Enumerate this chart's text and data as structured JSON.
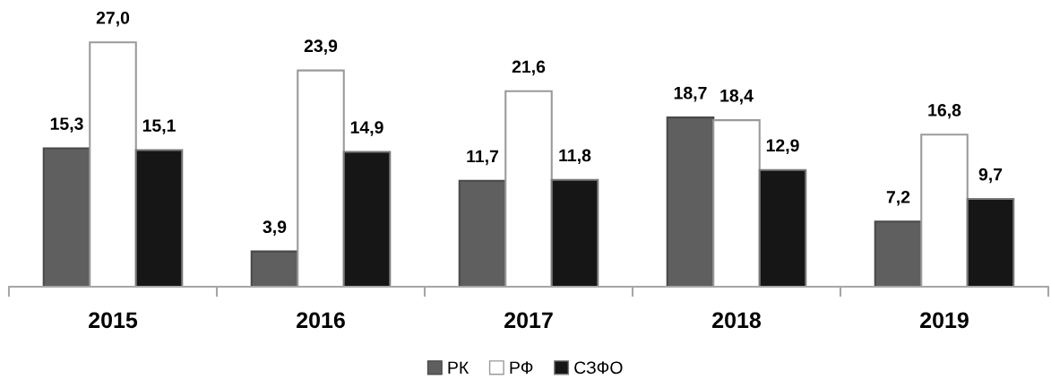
{
  "chart_data": {
    "type": "bar",
    "categories": [
      "2015",
      "2016",
      "2017",
      "2018",
      "2019"
    ],
    "series": [
      {
        "name": "РК",
        "color": "#5f5f5f",
        "values": [
          15.3,
          3.9,
          11.7,
          18.7,
          7.2
        ],
        "value_labels": [
          "15,3",
          "3,9",
          "11,7",
          "18,7",
          "7,2"
        ]
      },
      {
        "name": "РФ",
        "color": "#ffffff",
        "values": [
          27.0,
          23.9,
          21.6,
          18.4,
          16.8
        ],
        "value_labels": [
          "27,0",
          "23,9",
          "21,6",
          "18,4",
          "16,8"
        ]
      },
      {
        "name": "СЗФО",
        "color": "#161616",
        "values": [
          15.1,
          14.9,
          11.8,
          12.9,
          9.7
        ],
        "value_labels": [
          "15,1",
          "14,9",
          "11,8",
          "12,9",
          "9,7"
        ]
      }
    ],
    "legend": "bottom",
    "tick_labels": "x"
  }
}
